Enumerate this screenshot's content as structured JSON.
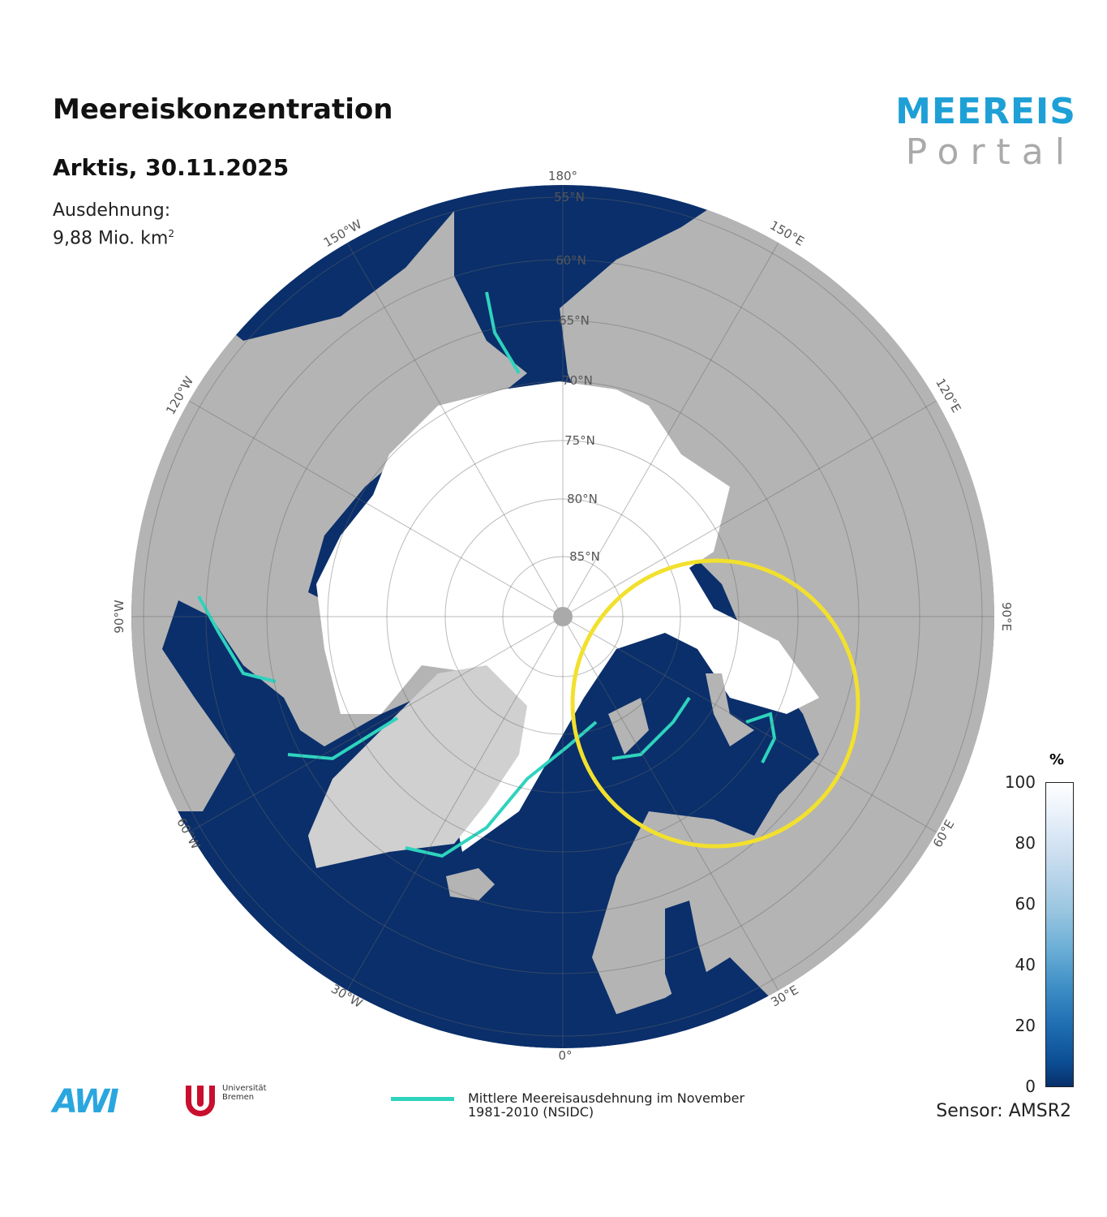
{
  "title": "Meereiskonzentration",
  "subtitle": "Arktis, 30.11.2025",
  "extent": {
    "label": "Ausdehnung:",
    "value": "9,88 Mio. km",
    "unit_sup": "2"
  },
  "brand": {
    "line1": "MEEREIS",
    "line2": "Portal"
  },
  "map": {
    "latitude_labels": [
      "55°N",
      "60°N",
      "65°N",
      "70°N",
      "75°N",
      "80°N",
      "85°N"
    ],
    "longitude_labels": [
      "180°",
      "150°E",
      "120°E",
      "90°E",
      "60°E",
      "30°E",
      "0°",
      "30°W",
      "60°W",
      "90°W",
      "120°W",
      "150°W"
    ],
    "colors": {
      "ocean": "#0a2f6b",
      "land": "#b4b4b4",
      "ice": "#ffffff",
      "median_line": "#2fd3bd",
      "highlight_circle": "#f2e02e"
    }
  },
  "colorbar": {
    "unit": "%",
    "ticks": [
      "100",
      "80",
      "60",
      "40",
      "20",
      "0"
    ],
    "range": [
      0,
      100
    ]
  },
  "sensor": "Sensor: AMSR2",
  "legend": {
    "line1": "Mittlere Meereisausdehnung im November",
    "line2": "1981-2010 (NSIDC)"
  },
  "logos": {
    "awi": "AWI",
    "uni_bremen_line1": "Universität",
    "uni_bremen_line2": "Bremen"
  }
}
